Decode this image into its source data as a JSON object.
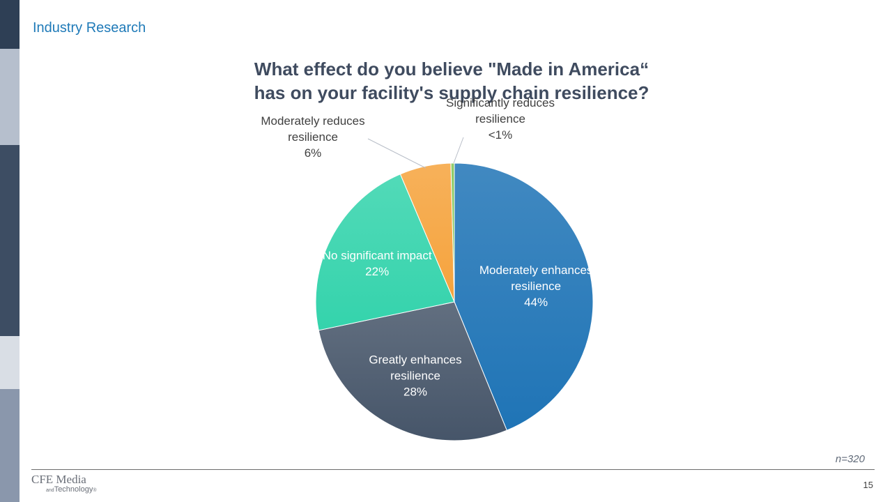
{
  "header": {
    "title": "Industry Research"
  },
  "sidebar_colors": [
    "#2e3f55",
    "#b6bfcd",
    "#3d4d63",
    "#d9dee5",
    "#8a97ac"
  ],
  "chart_data": {
    "type": "pie",
    "title_lines": [
      "What effect do you believe \"Made in America“",
      "has on your facility's supply chain resilience?"
    ],
    "slices": [
      {
        "label_lines": [
          "Moderately enhances",
          "resilience"
        ],
        "value": 44,
        "value_label": "44%",
        "color": "#1f74b6",
        "label_color": "#ffffff"
      },
      {
        "label_lines": [
          "Greatly enhances",
          "resilience"
        ],
        "value": 28,
        "value_label": "28%",
        "color": "#465569",
        "label_color": "#ffffff"
      },
      {
        "label_lines": [
          "No significant impact"
        ],
        "value": 22,
        "value_label": "22%",
        "color": "#34d3ac",
        "label_color": "#ffffff"
      },
      {
        "label_lines": [
          "Moderately reduces",
          "resilience"
        ],
        "value": 6,
        "value_label": "6%",
        "color": "#f5a33d",
        "label_color": "#404040"
      },
      {
        "label_lines": [
          "Significantly reduces",
          "resilience"
        ],
        "value": 0.4,
        "value_label": "<1%",
        "color": "#7cc453",
        "label_color": "#404040"
      }
    ]
  },
  "sample_size": "n=320",
  "footer": {
    "logo_main": "CFE Media",
    "logo_and": "and",
    "logo_sub": "Technology",
    "logo_mark": "®",
    "page_number": "15"
  }
}
